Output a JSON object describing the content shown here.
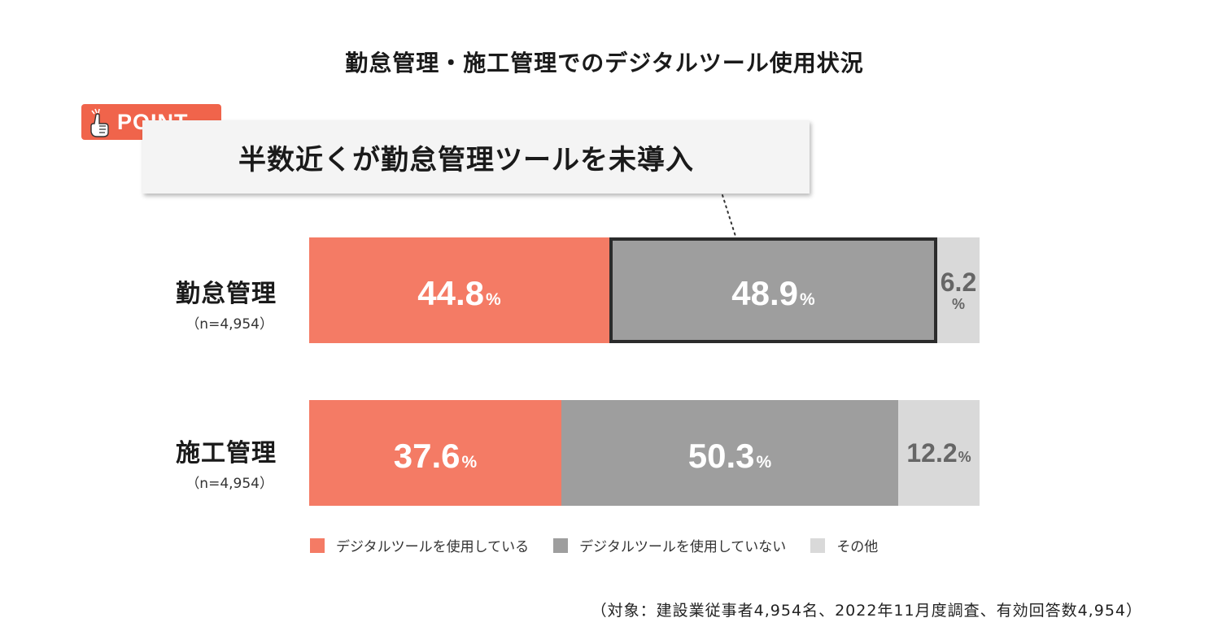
{
  "colors": {
    "using": "#f47b65",
    "not_using": "#9e9e9e",
    "other": "#d9d9d9",
    "accent": "#f0644b",
    "highlight_border": "#2b2b2b"
  },
  "icons": {
    "point": "pointing-hand-icon"
  },
  "point_badge": {
    "label": "POINT"
  },
  "callout": {
    "text": "半数近くが勤怠管理ツールを未導入"
  },
  "note": "（対象：建設業従事者4,954名、2022年11月度調査、有効回答数4,954）",
  "chart_data": {
    "type": "bar",
    "orientation": "horizontal",
    "stacked": true,
    "title": "勤怠管理・施工管理でのデジタルツール使用状況",
    "categories": [
      {
        "name": "勤怠管理",
        "n": "（n=4,954）"
      },
      {
        "name": "施工管理",
        "n": "（n=4,954）"
      }
    ],
    "unit": "%",
    "series": [
      {
        "name": "デジタルツールを使用している",
        "values": [
          44.8,
          37.6
        ],
        "labels": [
          "44.8",
          "37.6"
        ]
      },
      {
        "name": "デジタルツールを使用していない",
        "values": [
          48.9,
          50.3
        ],
        "labels": [
          "48.9",
          "50.3"
        ]
      },
      {
        "name": "その他",
        "values": [
          6.2,
          12.2
        ],
        "labels": [
          "6.2",
          "12.2"
        ]
      }
    ],
    "highlight": {
      "category": "勤怠管理",
      "series": "デジタルツールを使用していない"
    },
    "legend_position": "bottom",
    "xlim": [
      0,
      100
    ],
    "grid": false
  }
}
